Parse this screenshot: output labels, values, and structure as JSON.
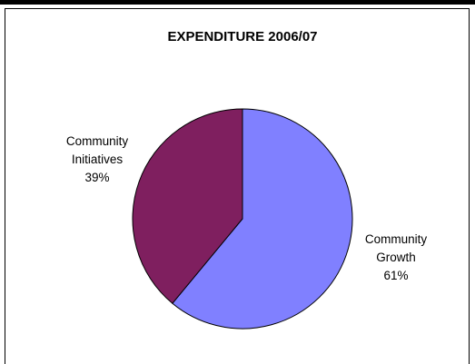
{
  "chart_data": {
    "type": "pie",
    "title": "EXPENDITURE 2006/07",
    "slices": [
      {
        "label_lines": [
          "Community",
          "Growth"
        ],
        "percent_label": "61%",
        "value": 61,
        "color": "#8080ff"
      },
      {
        "label_lines": [
          "Community",
          "Initiatives"
        ],
        "percent_label": "39%",
        "value": 39,
        "color": "#7f1f5f"
      }
    ],
    "start_angle_deg": 0,
    "direction": "clockwise",
    "slice_border_color": "#000000"
  }
}
